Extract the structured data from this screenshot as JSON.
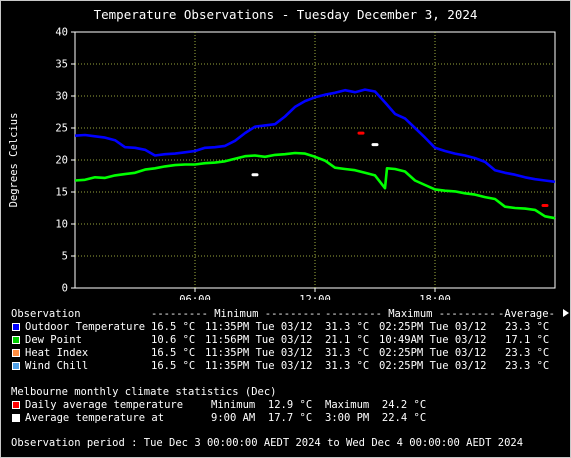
{
  "title": "Temperature Observations - Tuesday December 3, 2024",
  "chart_data": {
    "type": "line",
    "ylabel": "Degrees Celcius",
    "ylim": [
      0,
      40
    ],
    "yticks": [
      "0",
      "5",
      "10",
      "15",
      "20",
      "25",
      "30",
      "35",
      "40"
    ],
    "xlim_hours": [
      0,
      24
    ],
    "xticks": [
      {
        "hour": 6,
        "label": "06:00"
      },
      {
        "hour": 12,
        "label": "12:00"
      },
      {
        "hour": 18,
        "label": "18:00"
      }
    ],
    "grid": true,
    "series": [
      {
        "name": "Outdoor Temperature",
        "color": "#0000ff",
        "x": [
          0,
          0.5,
          1,
          1.5,
          2,
          2.5,
          3,
          3.5,
          4,
          4.5,
          5,
          5.5,
          6,
          6.5,
          7,
          7.5,
          8,
          8.5,
          9,
          9.5,
          10,
          10.5,
          11,
          11.5,
          12,
          12.5,
          13,
          13.5,
          14,
          14.5,
          15,
          15.5,
          16,
          16.5,
          17,
          17.5,
          18,
          18.5,
          19,
          19.5,
          20,
          20.5,
          21,
          21.5,
          22,
          22.5,
          23,
          23.5,
          24
        ],
        "y": [
          23.8,
          23.9,
          23.7,
          23.5,
          23.1,
          22.0,
          21.9,
          21.6,
          20.7,
          20.9,
          21.0,
          21.2,
          21.4,
          21.9,
          22.0,
          22.2,
          23.0,
          24.2,
          25.2,
          25.4,
          25.6,
          26.8,
          28.3,
          29.2,
          29.8,
          30.2,
          30.5,
          30.9,
          30.6,
          31.0,
          30.7,
          29.0,
          27.2,
          26.5,
          25.0,
          23.5,
          21.9,
          21.4,
          21.0,
          20.7,
          20.3,
          19.7,
          18.4,
          18.0,
          17.7,
          17.3,
          17.0,
          16.8,
          16.6
        ]
      },
      {
        "name": "Dew Point",
        "color": "#00ff00",
        "x": [
          0,
          0.5,
          1,
          1.5,
          2,
          2.5,
          3,
          3.5,
          4,
          4.5,
          5,
          5.5,
          6,
          6.5,
          7,
          7.5,
          8,
          8.5,
          9,
          9.5,
          10,
          10.5,
          11,
          11.5,
          12,
          12.5,
          13,
          13.5,
          14,
          14.5,
          15,
          15.5,
          15.6,
          16,
          16.5,
          17,
          17.5,
          18,
          18.5,
          19,
          19.5,
          20,
          20.5,
          21,
          21.5,
          22,
          22.5,
          23,
          23.5,
          24
        ],
        "y": [
          16.8,
          16.9,
          17.3,
          17.2,
          17.6,
          17.8,
          18.0,
          18.5,
          18.7,
          19.0,
          19.2,
          19.3,
          19.3,
          19.5,
          19.6,
          19.8,
          20.2,
          20.6,
          20.7,
          20.5,
          20.8,
          20.9,
          21.1,
          21.0,
          20.5,
          19.9,
          18.8,
          18.6,
          18.4,
          18.0,
          17.6,
          15.6,
          18.7,
          18.6,
          18.2,
          16.8,
          16.1,
          15.4,
          15.2,
          15.1,
          14.8,
          14.6,
          14.2,
          13.9,
          12.7,
          12.5,
          12.4,
          12.2,
          11.2,
          10.9
        ]
      },
      {
        "name": "Daily average temperature",
        "color": "#ff0000",
        "kind": "marker",
        "x": [
          14.3,
          23.5
        ],
        "y": [
          24.2,
          12.9
        ]
      },
      {
        "name": "Average temperature at",
        "color": "#ffffff",
        "kind": "marker",
        "x": [
          9,
          15
        ],
        "y": [
          17.7,
          22.4
        ]
      }
    ]
  },
  "stats": {
    "headers": [
      "Observation",
      "--------- Minimum ---------",
      "--------- Maximum ---------",
      "-Average-"
    ],
    "rows": [
      {
        "color": "#0000ff",
        "label": "Outdoor Temperature",
        "min": "16.5 °C",
        "min_at": "11:35PM Tue 03/12",
        "max": "31.3 °C",
        "max_at": "02:25PM Tue 03/12",
        "avg": "23.3 °C"
      },
      {
        "color": "#00cc00",
        "label": "Dew Point",
        "min": "10.6 °C",
        "min_at": "11:56PM Tue 03/12",
        "max": "21.1 °C",
        "max_at": "10:49AM Tue 03/12",
        "avg": "17.1 °C"
      },
      {
        "color": "#ff8c40",
        "label": "Heat Index",
        "min": "16.5 °C",
        "min_at": "11:35PM Tue 03/12",
        "max": "31.3 °C",
        "max_at": "02:25PM Tue 03/12",
        "avg": "23.3 °C"
      },
      {
        "color": "#50a0e6",
        "label": "Wind Chill",
        "min": "16.5 °C",
        "min_at": "11:35PM Tue 03/12",
        "max": "31.3 °C",
        "max_at": "02:25PM Tue 03/12",
        "avg": "23.3 °C"
      }
    ]
  },
  "climate": {
    "heading": "Melbourne monthly climate statistics (Dec)",
    "rows": [
      {
        "color": "#ff0000",
        "label": "Daily average temperature",
        "left": "Minimum  12.9 °C",
        "right": "Maximum  24.2 °C"
      },
      {
        "color": "#ffffff",
        "label": "Average temperature at",
        "left": "9:00 AM  17.7 °C",
        "right": "3:00 PM  22.4 °C"
      }
    ]
  },
  "period": "Observation period : Tue Dec 3 00:00:00 AEDT 2024 to Wed Dec 4 00:00:00 AEDT 2024"
}
